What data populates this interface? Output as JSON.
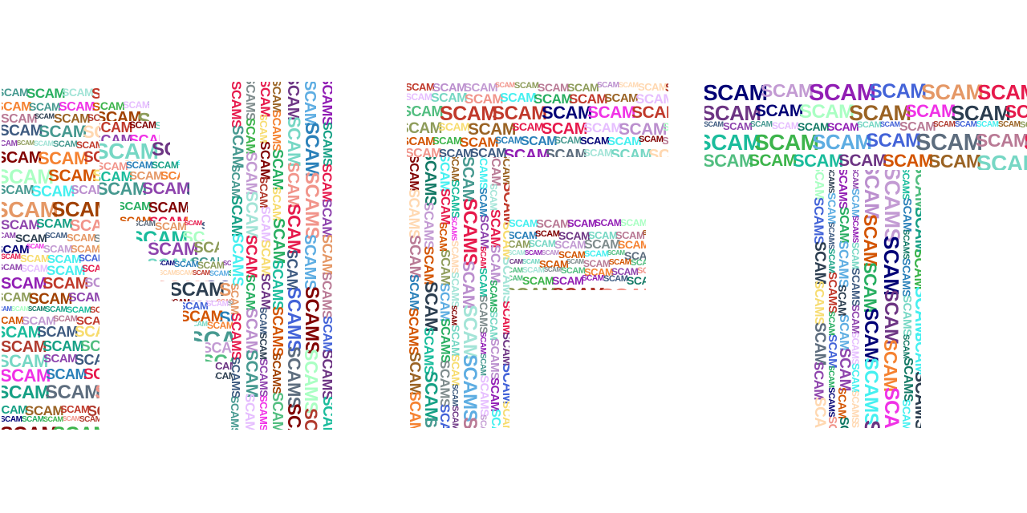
{
  "word": "SCAM",
  "vertical_word": "SCAMS",
  "letters": [
    "N",
    "F",
    "T"
  ],
  "palette": [
    "#e6194b",
    "#3cb44b",
    "#4363d8",
    "#f58231",
    "#911eb4",
    "#46f0f0",
    "#f032e6",
    "#9a6324",
    "#800000",
    "#469990",
    "#000075",
    "#e6beff",
    "#aaffc3",
    "#ffd8b1",
    "#8e44ad",
    "#16a085",
    "#c0392b",
    "#2c3e50",
    "#7f8c8d",
    "#d35400",
    "#27ae60",
    "#2980b9",
    "#b03a2e",
    "#6c3483",
    "#117864",
    "#a04000",
    "#5d6d7e",
    "#c39bd3",
    "#76d7c4",
    "#f1948a",
    "#bb8fce",
    "#52be80",
    "#5dade2",
    "#f7dc6f",
    "#e59866",
    "#a3e4d7",
    "#1abc9c",
    "#8e9c5a",
    "#b97a95",
    "#3d5a80"
  ]
}
